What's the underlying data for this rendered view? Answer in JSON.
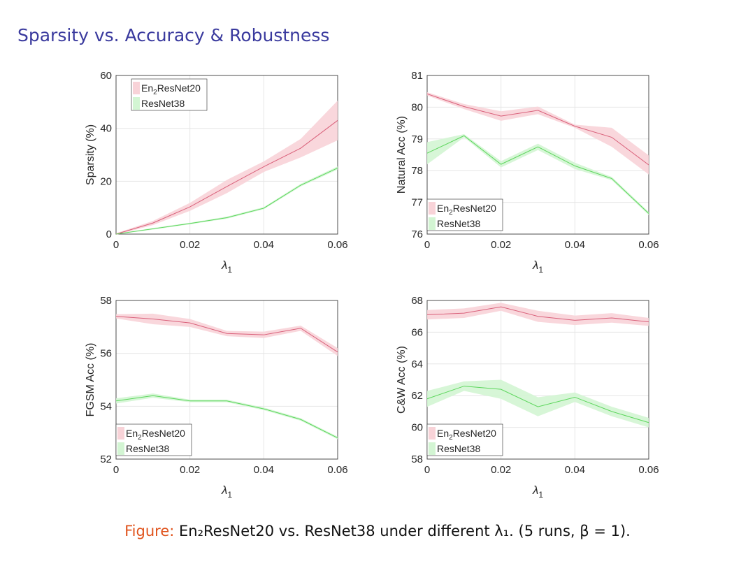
{
  "title": "Sparsity vs. Accuracy & Robustness",
  "caption": {
    "label": "Figure:",
    "text": "En₂ResNet20 vs. ResNet38 under different λ₁. (5 runs, β = 1)."
  },
  "colors": {
    "en2": "#d9607a",
    "en2_band": "#f8d3d8",
    "r38": "#5cd65c",
    "r38_band": "#d3f5d3"
  },
  "chart_data": [
    {
      "type": "line",
      "xlabel": "λ1",
      "ylabel": "Sparsity (%)",
      "ylim": [
        0,
        60
      ],
      "yticks": [
        0,
        20,
        40,
        60
      ],
      "xlim": [
        0,
        0.06
      ],
      "xticks": [
        "0",
        "0.02",
        "0.04",
        "0.06"
      ],
      "legend": "top-left",
      "grid": true,
      "x": [
        0,
        0.01,
        0.02,
        0.03,
        0.04,
        0.05,
        0.06
      ],
      "series": [
        {
          "name": "En2ResNet20",
          "values": [
            0,
            4.2,
            10.3,
            18,
            25.5,
            32.5,
            43
          ],
          "spread": [
            0.3,
            0.8,
            1.5,
            2.5,
            2,
            3.5,
            7.5
          ]
        },
        {
          "name": "ResNet38",
          "values": [
            0,
            2,
            4,
            6.2,
            9.8,
            18.5,
            25
          ],
          "spread": [
            0.1,
            0.3,
            0.3,
            0.4,
            0.4,
            0.5,
            0.6
          ]
        }
      ]
    },
    {
      "type": "line",
      "xlabel": "λ1",
      "ylabel": "Natural Acc (%)",
      "ylim": [
        76,
        81
      ],
      "yticks": [
        76,
        77,
        78,
        79,
        80,
        81
      ],
      "xlim": [
        0,
        0.06
      ],
      "xticks": [
        "0",
        "0.02",
        "0.04",
        "0.06"
      ],
      "legend": "bottom-left",
      "grid": true,
      "x": [
        0,
        0.01,
        0.02,
        0.03,
        0.04,
        0.05,
        0.06
      ],
      "series": [
        {
          "name": "En2ResNet20",
          "values": [
            80.42,
            80.02,
            79.72,
            79.9,
            79.4,
            79.05,
            78.18
          ],
          "spread": [
            0.05,
            0.08,
            0.15,
            0.12,
            0.05,
            0.3,
            0.3
          ]
        },
        {
          "name": "ResNet38",
          "values": [
            78.55,
            79.1,
            78.2,
            78.75,
            78.15,
            77.75,
            76.65
          ],
          "spread": [
            0.35,
            0.05,
            0.1,
            0.1,
            0.1,
            0.05,
            0.05
          ]
        }
      ]
    },
    {
      "type": "line",
      "xlabel": "λ1",
      "ylabel": "FGSM Acc (%)",
      "ylim": [
        52,
        58
      ],
      "yticks": [
        52,
        54,
        56,
        58
      ],
      "xlim": [
        0,
        0.06
      ],
      "xticks": [
        "0",
        "0.02",
        "0.04",
        "0.06"
      ],
      "legend": "bottom-left",
      "grid": true,
      "x": [
        0,
        0.01,
        0.02,
        0.03,
        0.04,
        0.05,
        0.06
      ],
      "series": [
        {
          "name": "En2ResNet20",
          "values": [
            57.4,
            57.3,
            57.15,
            56.75,
            56.7,
            56.95,
            56.05
          ],
          "spread": [
            0.08,
            0.2,
            0.15,
            0.1,
            0.12,
            0.1,
            0.15
          ]
        },
        {
          "name": "ResNet38",
          "values": [
            54.2,
            54.4,
            54.2,
            54.2,
            53.9,
            53.5,
            52.8
          ],
          "spread": [
            0.1,
            0.08,
            0.05,
            0.05,
            0.05,
            0.05,
            0.05
          ]
        }
      ]
    },
    {
      "type": "line",
      "xlabel": "λ1",
      "ylabel": "C&W Acc (%)",
      "ylim": [
        58,
        68
      ],
      "yticks": [
        58,
        60,
        62,
        64,
        66,
        68
      ],
      "xlim": [
        0,
        0.06
      ],
      "xticks": [
        "0",
        "0.02",
        "0.04",
        "0.06"
      ],
      "legend": "bottom-left",
      "grid": true,
      "x": [
        0,
        0.01,
        0.02,
        0.03,
        0.04,
        0.05,
        0.06
      ],
      "series": [
        {
          "name": "En2ResNet20",
          "values": [
            67.1,
            67.2,
            67.6,
            67.0,
            66.75,
            66.9,
            66.65
          ],
          "spread": [
            0.3,
            0.3,
            0.25,
            0.35,
            0.3,
            0.3,
            0.25
          ]
        },
        {
          "name": "ResNet38",
          "values": [
            61.8,
            62.6,
            62.4,
            61.3,
            61.9,
            61.0,
            60.3
          ],
          "spread": [
            0.5,
            0.3,
            0.6,
            0.6,
            0.3,
            0.3,
            0.3
          ]
        }
      ]
    }
  ]
}
